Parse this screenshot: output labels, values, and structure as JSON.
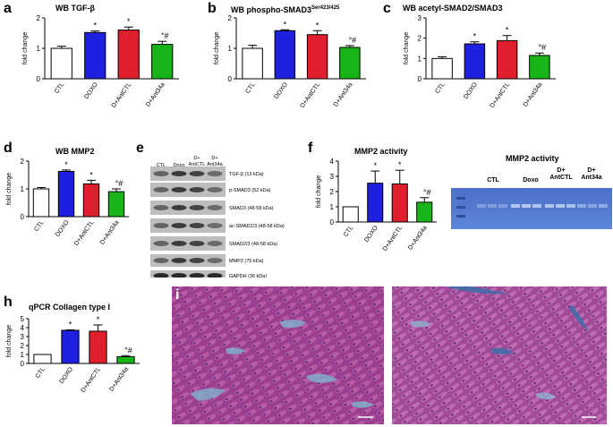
{
  "colors": {
    "ctl": "#ffffff",
    "doxo": "#1f1fe0",
    "antctl": "#e01f2c",
    "ant34a": "#18b418"
  },
  "panels": {
    "a": {
      "letter": "a",
      "title": "WB TGF-β",
      "title_sup": ""
    },
    "b": {
      "letter": "b",
      "title": "WB phospho-SMAD3",
      "title_sup": "Ser423/425"
    },
    "c": {
      "letter": "c",
      "title": "WB acetyl-SMAD2/SMAD3",
      "title_sup": ""
    },
    "d": {
      "letter": "d",
      "title": "WB MMP2",
      "title_sup": ""
    },
    "e": {
      "letter": "e"
    },
    "f": {
      "letter": "f",
      "title": "MMP2 activity",
      "title_sup": ""
    },
    "g": {
      "letter": "g",
      "title": "MMP2 activity"
    },
    "h": {
      "letter": "h",
      "title": "qPCR Collagen type I",
      "title_sup": ""
    },
    "i": {
      "letter": "i"
    }
  },
  "chart_data": [
    {
      "id": "a",
      "type": "bar",
      "ylabel": "fold change",
      "ylim": [
        0,
        2
      ],
      "yticks": [
        0,
        1,
        2
      ],
      "categories": [
        "CTL",
        "DOXO",
        "D+AntCTL",
        "D+Ant34a"
      ],
      "values": [
        1.0,
        1.52,
        1.6,
        1.13
      ],
      "errors": [
        0.07,
        0.05,
        0.1,
        0.1
      ],
      "annotations": [
        "",
        "*",
        "*",
        "°#"
      ]
    },
    {
      "id": "b",
      "type": "bar",
      "ylabel": "fold change",
      "ylim": [
        0,
        2
      ],
      "yticks": [
        0,
        1,
        2
      ],
      "categories": [
        "CTL",
        "DOXO",
        "D+AntCTL",
        "D+Ant34a"
      ],
      "values": [
        1.0,
        1.58,
        1.45,
        1.03
      ],
      "errors": [
        0.1,
        0.03,
        0.13,
        0.06
      ],
      "annotations": [
        "",
        "*",
        "*",
        "°#"
      ]
    },
    {
      "id": "c",
      "type": "bar",
      "ylabel": "fold change",
      "ylim": [
        0,
        3
      ],
      "yticks": [
        0,
        1,
        2,
        3
      ],
      "categories": [
        "CTL",
        "DOXO",
        "D+AntCTL",
        "D+Ant34a"
      ],
      "values": [
        1.0,
        1.72,
        1.88,
        1.15
      ],
      "errors": [
        0.08,
        0.1,
        0.25,
        0.12
      ],
      "annotations": [
        "",
        "*",
        "*",
        "°#"
      ]
    },
    {
      "id": "d",
      "type": "bar",
      "ylabel": "fold change",
      "ylim": [
        0,
        2
      ],
      "yticks": [
        0,
        1,
        2
      ],
      "categories": [
        "CTL",
        "DOXO",
        "D+AntCTL",
        "D+Ant34a"
      ],
      "values": [
        1.0,
        1.63,
        1.18,
        0.9
      ],
      "errors": [
        0.05,
        0.05,
        0.13,
        0.1
      ],
      "annotations": [
        "",
        "*",
        "*",
        "°#"
      ]
    },
    {
      "id": "f",
      "type": "bar",
      "ylabel": "fold change",
      "ylim": [
        0,
        4
      ],
      "yticks": [
        0,
        1,
        2,
        3,
        4
      ],
      "categories": [
        "CTL",
        "DOXO",
        "D+AntCTL",
        "D+Ant34a"
      ],
      "values": [
        1.0,
        2.55,
        2.5,
        1.3
      ],
      "errors": [
        0.0,
        0.8,
        0.9,
        0.3
      ],
      "annotations": [
        "",
        "*",
        "*",
        "°#"
      ]
    },
    {
      "id": "h",
      "type": "bar",
      "ylabel": "fold change",
      "ylim": [
        0,
        5
      ],
      "yticks": [
        0,
        1,
        2,
        3,
        4,
        5
      ],
      "categories": [
        "CTL",
        "DOXO",
        "D+AntCTL",
        "D+Ant34a"
      ],
      "values": [
        1.0,
        3.7,
        3.6,
        0.75
      ],
      "errors": [
        0.0,
        0.05,
        0.7,
        0.12
      ],
      "annotations": [
        "",
        "*",
        "*",
        "°#"
      ]
    }
  ],
  "blot": {
    "lanes": [
      "CTL",
      "Doxo",
      "D+\nAntCTL",
      "D+\nAnt34a"
    ],
    "lane_lines": [
      [
        "CTL"
      ],
      [
        "Doxo"
      ],
      [
        "D+",
        "AntCTL"
      ],
      [
        "D+",
        "Ant34a"
      ]
    ],
    "bands": [
      "TGF-β (13 kDa)",
      "p-SMAD3 (52 kDa)",
      "SMAD3 (48-58 kDa)",
      "ac-SMAD2/3 (48-58 kDa)",
      "SMAD2/3 (48-58 kDa)",
      "MMP2 (75 kDa)",
      "GAPDH (36 kDa)"
    ]
  },
  "gel": {
    "groups": [
      [
        "CTL"
      ],
      [
        "Doxo"
      ],
      [
        "D+",
        "AntCTL"
      ],
      [
        "D+",
        "Ant34a"
      ]
    ]
  }
}
